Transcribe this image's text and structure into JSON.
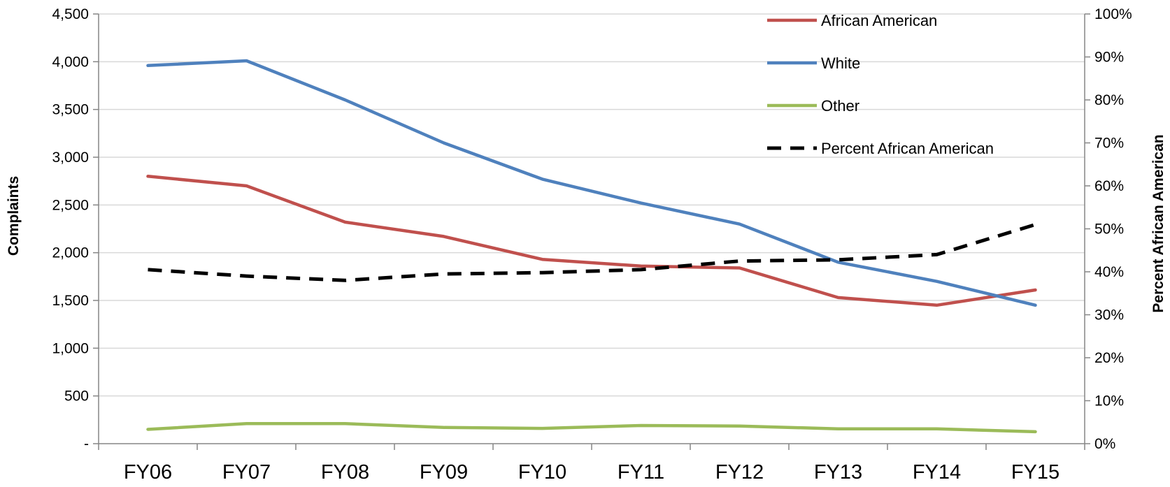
{
  "chart_data": {
    "type": "line",
    "categories": [
      "FY06",
      "FY07",
      "FY08",
      "FY09",
      "FY10",
      "FY11",
      "FY12",
      "FY13",
      "FY14",
      "FY15"
    ],
    "series": [
      {
        "name": "African American",
        "axis": "left",
        "color": "#c0504d",
        "dashed": false,
        "values": [
          2800,
          2700,
          2320,
          2170,
          1930,
          1860,
          1840,
          1530,
          1450,
          1610
        ]
      },
      {
        "name": "White",
        "axis": "left",
        "color": "#4f81bd",
        "dashed": false,
        "values": [
          3960,
          4010,
          3600,
          3150,
          2770,
          2520,
          2300,
          1900,
          1700,
          1450
        ]
      },
      {
        "name": "Other",
        "axis": "left",
        "color": "#9bbb59",
        "dashed": false,
        "values": [
          150,
          210,
          210,
          170,
          160,
          190,
          185,
          155,
          155,
          125
        ]
      },
      {
        "name": "Percent African American",
        "axis": "right",
        "color": "#000000",
        "dashed": true,
        "values": [
          0.405,
          0.39,
          0.38,
          0.395,
          0.398,
          0.405,
          0.425,
          0.428,
          0.44,
          0.51
        ]
      }
    ],
    "ylabel": "Complaints",
    "y2label": "Percent African American",
    "ylim": [
      0,
      4500
    ],
    "y2lim": [
      0,
      1
    ],
    "y_ticks": [
      {
        "v": 0,
        "label": "-"
      },
      {
        "v": 500,
        "label": "500"
      },
      {
        "v": 1000,
        "label": "1,000"
      },
      {
        "v": 1500,
        "label": "1,500"
      },
      {
        "v": 2000,
        "label": "2,000"
      },
      {
        "v": 2500,
        "label": "2,500"
      },
      {
        "v": 3000,
        "label": "3,000"
      },
      {
        "v": 3500,
        "label": "3,500"
      },
      {
        "v": 4000,
        "label": "4,000"
      },
      {
        "v": 4500,
        "label": "4,500"
      }
    ],
    "y2_ticks": [
      {
        "v": 0,
        "label": "0%"
      },
      {
        "v": 0.1,
        "label": "10%"
      },
      {
        "v": 0.2,
        "label": "20%"
      },
      {
        "v": 0.3,
        "label": "30%"
      },
      {
        "v": 0.4,
        "label": "40%"
      },
      {
        "v": 0.5,
        "label": "50%"
      },
      {
        "v": 0.6,
        "label": "60%"
      },
      {
        "v": 0.7,
        "label": "70%"
      },
      {
        "v": 0.8,
        "label": "80%"
      },
      {
        "v": 0.9,
        "label": "90%"
      },
      {
        "v": 1,
        "label": "100%"
      }
    ],
    "grid": true,
    "legend_position": "top-right"
  }
}
